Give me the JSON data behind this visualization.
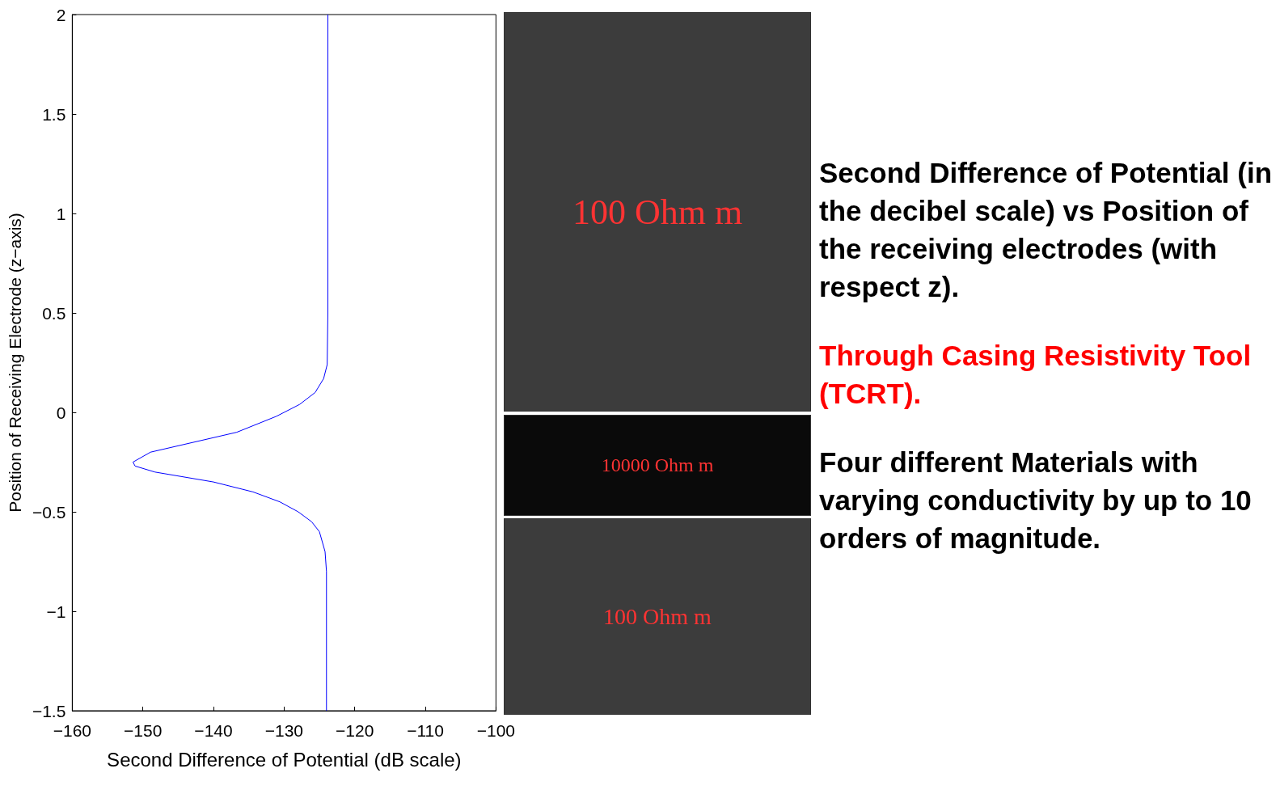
{
  "chart_data": [
    {
      "type": "line",
      "xlabel": "Second Difference of Potential (dB scale)",
      "ylabel": "Position of Receiving Electrode (z−axis)",
      "xlim": [
        -160,
        -100
      ],
      "ylim": [
        -1.5,
        2
      ],
      "xticks": [
        -160,
        -150,
        -140,
        -130,
        -120,
        -110,
        -100
      ],
      "yticks": [
        -1.5,
        -1,
        -0.5,
        0,
        0.5,
        1,
        1.5,
        2
      ],
      "grid": false,
      "series": [
        {
          "color": "#0000ff",
          "x": [
            -123.8,
            -123.8,
            -123.8,
            -123.9,
            -124.4,
            -125.6,
            -127.8,
            -131.1,
            -136.7,
            -148.9,
            -151.4,
            -151.1,
            -148.3,
            -140,
            -134.4,
            -130.6,
            -128,
            -126.1,
            -125,
            -124.2,
            -124,
            -124,
            -124
          ],
          "values": [
            2,
            1,
            0.5,
            0.24,
            0.17,
            0.1,
            0.04,
            -0.02,
            -0.1,
            -0.2,
            -0.25,
            -0.27,
            -0.3,
            -0.35,
            -0.4,
            -0.45,
            -0.5,
            -0.55,
            -0.6,
            -0.7,
            -0.8,
            -1,
            -1.5
          ]
        }
      ]
    },
    {
      "type": "other",
      "annotations": [
        "100 Ohm m",
        "10000 Ohm m",
        "100 Ohm m"
      ]
    },
    {
      "type": "other",
      "annotations": [
        "Second Difference of Potential (in the decibel scale) vs Position of the receiving electrodes (with respect z).",
        "Through Casing Resistivity Tool (TCRT).",
        "Four different Materials with varying conductivity by up to 10 orders of magnitude."
      ],
      "colors": [
        "#000000",
        "#ff0000",
        "#000000"
      ]
    }
  ]
}
